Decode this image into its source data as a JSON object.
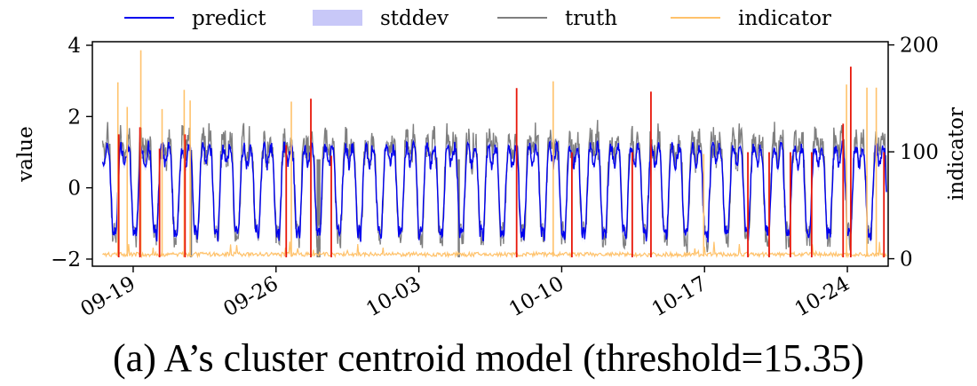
{
  "caption": "(a) A’s cluster centroid model (threshold=15.35)",
  "chart_data": {
    "type": "line",
    "title": "",
    "xlabel": "",
    "ylabel": "value",
    "y2label": "indicator",
    "ylim": [
      -2.2,
      4.1
    ],
    "y2lim": [
      -7,
      203
    ],
    "yticks": [
      -2,
      0,
      2,
      4
    ],
    "y2ticks": [
      0,
      100,
      200
    ],
    "x_start": "09-17",
    "x_end": "10-26",
    "xticks": [
      "09-19",
      "09-26",
      "10-03",
      "10-10",
      "10-17",
      "10-24"
    ],
    "grid": false,
    "legend": {
      "position": "top",
      "entries": [
        "predict",
        "stddev",
        "truth",
        "indicator"
      ]
    },
    "colors": {
      "predict": "#0000ee",
      "stddev": "#c8c8f8",
      "truth": "#7f7f7f",
      "indicator": "#ffc26b",
      "anomaly": "#e8170a"
    },
    "series": [
      {
        "name": "predict",
        "axis": "left",
        "pattern": "daily cycle between about -1.3 at night and about 1.1 by day"
      },
      {
        "name": "stddev",
        "axis": "left",
        "pattern": "narrow band around predict"
      },
      {
        "name": "truth",
        "axis": "left",
        "pattern": "daily cycle between about -1.5 and about 1.8"
      },
      {
        "name": "indicator",
        "axis": "right",
        "baseline": 2,
        "spikes": [
          {
            "x": "09-18 06:00",
            "y": 165
          },
          {
            "x": "09-18 17:00",
            "y": 142
          },
          {
            "x": "09-19 09:00",
            "y": 195
          },
          {
            "x": "09-20 10:00",
            "y": 140
          },
          {
            "x": "09-21 12:00",
            "y": 158
          },
          {
            "x": "09-21 19:00",
            "y": 148
          },
          {
            "x": "09-26 18:00",
            "y": 147
          },
          {
            "x": "10-09 14:00",
            "y": 166
          },
          {
            "x": "10-16 23:00",
            "y": 98
          },
          {
            "x": "10-23 23:00",
            "y": 163
          },
          {
            "x": "10-24 23:00",
            "y": 160
          },
          {
            "x": "10-25 10:00",
            "y": 160
          }
        ]
      }
    ],
    "anomalies": [
      {
        "x": "09-18 07:00",
        "value": 1.5
      },
      {
        "x": "09-19 08:00",
        "value": 1.7
      },
      {
        "x": "09-20 07:00",
        "value": 1.1
      },
      {
        "x": "09-21 13:00",
        "value": 1.5
      },
      {
        "x": "09-26 12:00",
        "value": 1.2
      },
      {
        "x": "09-27 17:00",
        "value": 2.5
      },
      {
        "x": "09-28 17:00",
        "value": 0.9
      },
      {
        "x": "10-07 19:00",
        "value": 2.8
      },
      {
        "x": "10-10 12:00",
        "value": 1.0
      },
      {
        "x": "10-13 11:00",
        "value": 1.0
      },
      {
        "x": "10-14 09:00",
        "value": 2.7
      },
      {
        "x": "10-19 03:00",
        "value": 1.0
      },
      {
        "x": "10-20 04:00",
        "value": 1.0
      },
      {
        "x": "10-21 05:00",
        "value": 1.0
      },
      {
        "x": "10-22 06:00",
        "value": 1.0
      },
      {
        "x": "10-23 19:00",
        "value": 1.8
      },
      {
        "x": "10-24 04:00",
        "value": 3.4
      },
      {
        "x": "10-25 19:00",
        "value": 1.0
      }
    ]
  }
}
